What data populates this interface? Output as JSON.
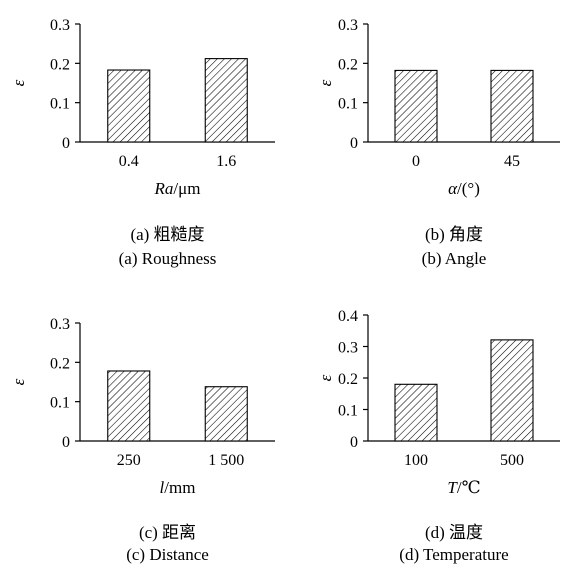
{
  "chart_data": [
    {
      "type": "bar",
      "categories": [
        "0.4",
        "1.6"
      ],
      "values": [
        0.183,
        0.212
      ],
      "ylabel": "ε",
      "xlabel_italic": "Ra",
      "xlabel_rest": "/μm",
      "ylim": [
        0,
        0.3
      ],
      "yticks": [
        "0",
        "0.1",
        "0.2",
        "0.3"
      ],
      "caption_cn": "(a) 粗糙度",
      "caption_en": "(a) Roughness"
    },
    {
      "type": "bar",
      "categories": [
        "0",
        "45"
      ],
      "values": [
        0.182,
        0.182
      ],
      "ylabel": "ε",
      "xlabel_italic": "α",
      "xlabel_rest": "/(°)",
      "ylim": [
        0,
        0.3
      ],
      "yticks": [
        "0",
        "0.1",
        "0.2",
        "0.3"
      ],
      "caption_cn": "(b) 角度",
      "caption_en": "(b) Angle"
    },
    {
      "type": "bar",
      "categories": [
        "250",
        "1 500"
      ],
      "values": [
        0.178,
        0.138
      ],
      "ylabel": "ε",
      "xlabel_italic": "l",
      "xlabel_rest": "/mm",
      "ylim": [
        0,
        0.3
      ],
      "yticks": [
        "0",
        "0.1",
        "0.2",
        "0.3"
      ],
      "caption_cn": "(c) 距离",
      "caption_en": "(c) Distance"
    },
    {
      "type": "bar",
      "categories": [
        "100",
        "500"
      ],
      "values": [
        0.18,
        0.321
      ],
      "ylabel": "ε",
      "xlabel_italic": "T",
      "xlabel_rest": "/℃",
      "ylim": [
        0,
        0.4
      ],
      "yticks": [
        "0",
        "0.1",
        "0.2",
        "0.3",
        "0.4"
      ],
      "caption_cn": "(d) 温度",
      "caption_en": "(d) Temperature"
    }
  ]
}
